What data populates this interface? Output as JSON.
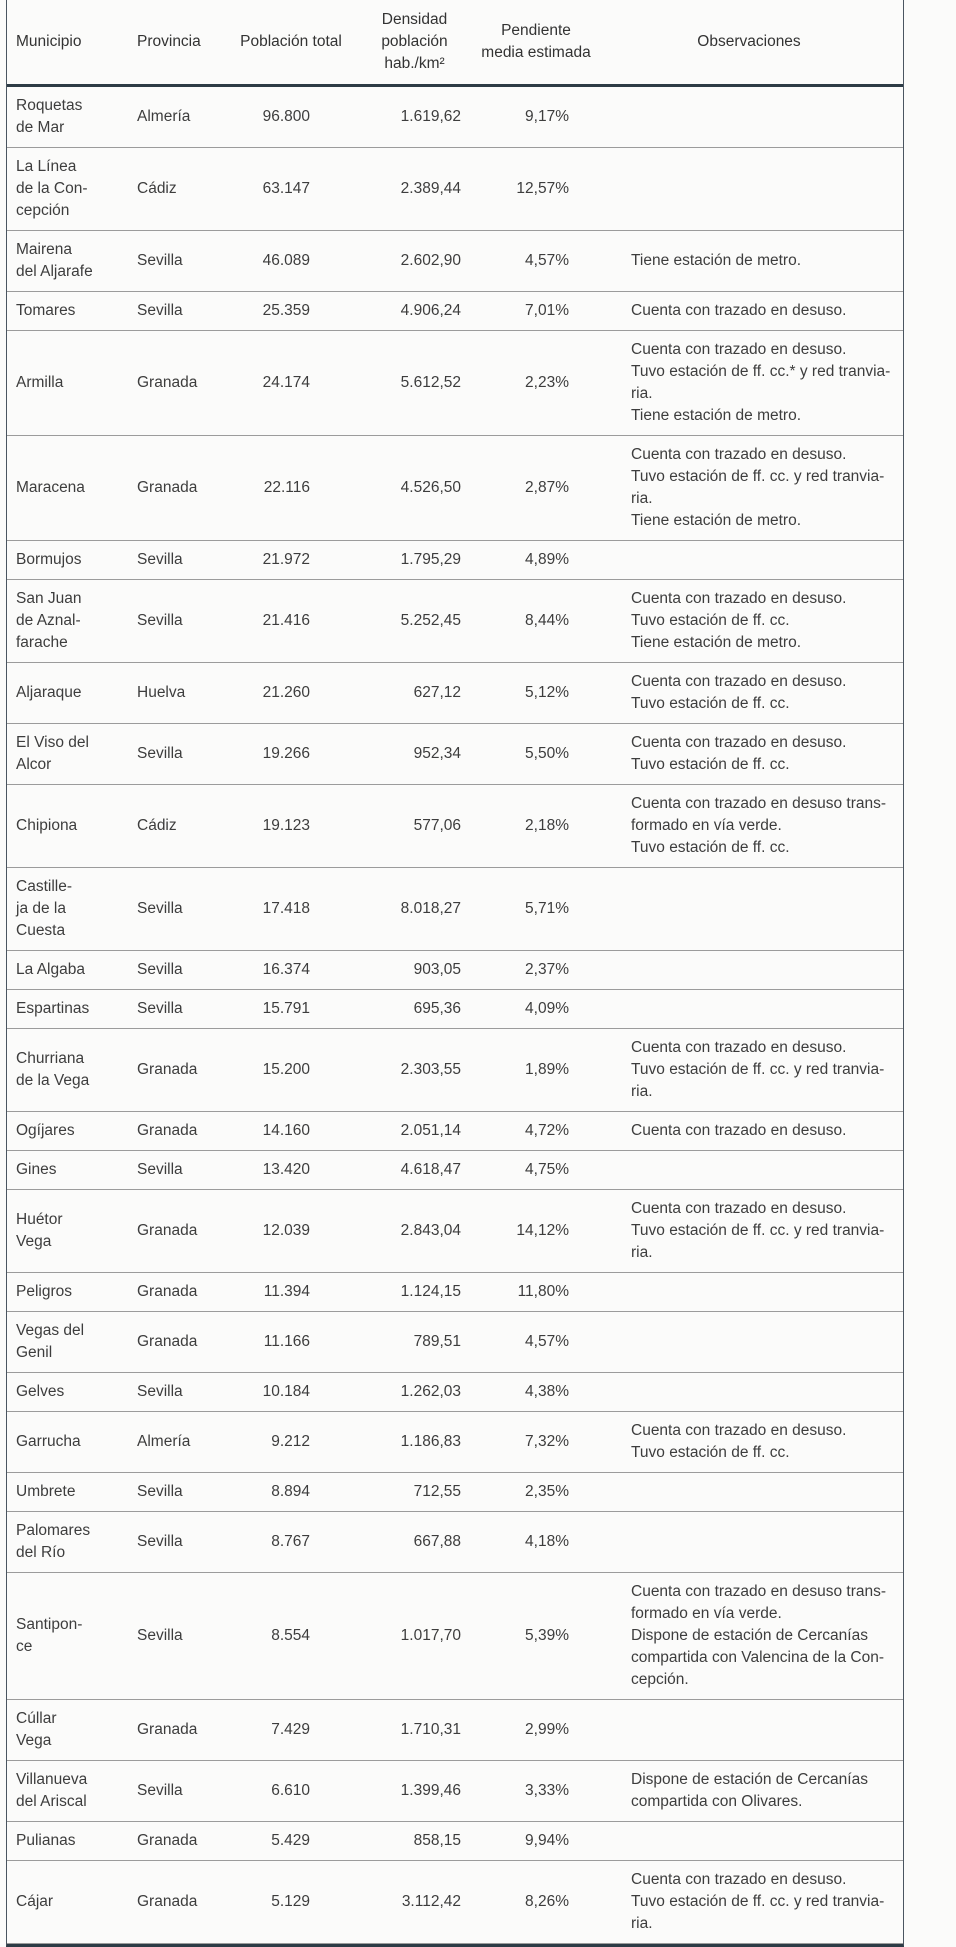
{
  "table": {
    "columns": [
      {
        "key": "municipio",
        "label": "Municipio"
      },
      {
        "key": "provincia",
        "label": "Provincia"
      },
      {
        "key": "poblacion",
        "label": "Población total"
      },
      {
        "key": "densidad",
        "label": "Densidad población hab./km²"
      },
      {
        "key": "pendiente",
        "label": "Pendiente media estimada"
      },
      {
        "key": "observaciones",
        "label": "Observaciones"
      }
    ],
    "rows": [
      {
        "municipio": "Roquetas\nde Mar",
        "provincia": "Almería",
        "poblacion": "96.800",
        "densidad": "1.619,62",
        "pendiente": "9,17%",
        "observaciones": ""
      },
      {
        "municipio": "La Línea\nde la Con-\ncepción",
        "provincia": "Cádiz",
        "poblacion": "63.147",
        "densidad": "2.389,44",
        "pendiente": "12,57%",
        "observaciones": ""
      },
      {
        "municipio": "Mairena\ndel Aljarafe",
        "provincia": "Sevilla",
        "poblacion": "46.089",
        "densidad": "2.602,90",
        "pendiente": "4,57%",
        "observaciones": "Tiene estación de metro."
      },
      {
        "municipio": "Tomares",
        "provincia": "Sevilla",
        "poblacion": "25.359",
        "densidad": "4.906,24",
        "pendiente": "7,01%",
        "observaciones": "Cuenta con trazado en desuso."
      },
      {
        "municipio": "Armilla",
        "provincia": "Granada",
        "poblacion": "24.174",
        "densidad": "5.612,52",
        "pendiente": "2,23%",
        "observaciones": "Cuenta con trazado en desuso.\nTuvo estación de ff. cc.* y red tranvia-\nria.\nTiene estación de metro."
      },
      {
        "municipio": "Maracena",
        "provincia": "Granada",
        "poblacion": "22.116",
        "densidad": "4.526,50",
        "pendiente": "2,87%",
        "observaciones": "Cuenta con trazado en desuso.\nTuvo estación de ff. cc. y red tranvia-\nria.\nTiene estación de metro."
      },
      {
        "municipio": "Bormujos",
        "provincia": "Sevilla",
        "poblacion": "21.972",
        "densidad": "1.795,29",
        "pendiente": "4,89%",
        "observaciones": ""
      },
      {
        "municipio": "San Juan\nde Aznal-\nfarache",
        "provincia": "Sevilla",
        "poblacion": "21.416",
        "densidad": "5.252,45",
        "pendiente": "8,44%",
        "observaciones": "Cuenta con trazado en desuso.\nTuvo estación de ff. cc.\nTiene estación de metro."
      },
      {
        "municipio": "Aljaraque",
        "provincia": "Huelva",
        "poblacion": "21.260",
        "densidad": "627,12",
        "pendiente": "5,12%",
        "observaciones": "Cuenta con trazado en desuso.\nTuvo estación de ff. cc."
      },
      {
        "municipio": "El Viso del\nAlcor",
        "provincia": "Sevilla",
        "poblacion": "19.266",
        "densidad": "952,34",
        "pendiente": "5,50%",
        "observaciones": "Cuenta con trazado en desuso.\nTuvo estación de ff. cc."
      },
      {
        "municipio": "Chipiona",
        "provincia": "Cádiz",
        "poblacion": "19.123",
        "densidad": "577,06",
        "pendiente": "2,18%",
        "observaciones": "Cuenta con trazado en desuso trans-\nformado en vía verde.\nTuvo estación de ff. cc."
      },
      {
        "municipio": "Castille-\nja de la\nCuesta",
        "provincia": "Sevilla",
        "poblacion": "17.418",
        "densidad": "8.018,27",
        "pendiente": "5,71%",
        "observaciones": ""
      },
      {
        "municipio": "La Algaba",
        "provincia": "Sevilla",
        "poblacion": "16.374",
        "densidad": "903,05",
        "pendiente": "2,37%",
        "observaciones": ""
      },
      {
        "municipio": "Espartinas",
        "provincia": "Sevilla",
        "poblacion": "15.791",
        "densidad": "695,36",
        "pendiente": "4,09%",
        "observaciones": ""
      },
      {
        "municipio": "Churriana\nde la Vega",
        "provincia": "Granada",
        "poblacion": "15.200",
        "densidad": "2.303,55",
        "pendiente": "1,89%",
        "observaciones": "Cuenta con trazado en desuso.\nTuvo estación de ff. cc. y red tranvia-\nria."
      },
      {
        "municipio": "Ogíjares",
        "provincia": "Granada",
        "poblacion": "14.160",
        "densidad": "2.051,14",
        "pendiente": "4,72%",
        "observaciones": "Cuenta con trazado en desuso."
      },
      {
        "municipio": "Gines",
        "provincia": "Sevilla",
        "poblacion": "13.420",
        "densidad": "4.618,47",
        "pendiente": "4,75%",
        "observaciones": ""
      },
      {
        "municipio": "Huétor\nVega",
        "provincia": "Granada",
        "poblacion": "12.039",
        "densidad": "2.843,04",
        "pendiente": "14,12%",
        "observaciones": "Cuenta con trazado en desuso.\nTuvo estación de ff. cc. y red tranvia-\nria."
      },
      {
        "municipio": "Peligros",
        "provincia": "Granada",
        "poblacion": "11.394",
        "densidad": "1.124,15",
        "pendiente": "11,80%",
        "observaciones": ""
      },
      {
        "municipio": "Vegas del\nGenil",
        "provincia": "Granada",
        "poblacion": "11.166",
        "densidad": "789,51",
        "pendiente": "4,57%",
        "observaciones": ""
      },
      {
        "municipio": "Gelves",
        "provincia": "Sevilla",
        "poblacion": "10.184",
        "densidad": "1.262,03",
        "pendiente": "4,38%",
        "observaciones": ""
      },
      {
        "municipio": "Garrucha",
        "provincia": "Almería",
        "poblacion": "9.212",
        "densidad": "1.186,83",
        "pendiente": "7,32%",
        "observaciones": "Cuenta con trazado en desuso.\nTuvo estación de ff. cc."
      },
      {
        "municipio": "Umbrete",
        "provincia": "Sevilla",
        "poblacion": "8.894",
        "densidad": "712,55",
        "pendiente": "2,35%",
        "observaciones": ""
      },
      {
        "municipio": "Palomares\ndel Río",
        "provincia": "Sevilla",
        "poblacion": "8.767",
        "densidad": "667,88",
        "pendiente": "4,18%",
        "observaciones": ""
      },
      {
        "municipio": "Santipon-\nce",
        "provincia": "Sevilla",
        "poblacion": "8.554",
        "densidad": "1.017,70",
        "pendiente": "5,39%",
        "observaciones": "Cuenta con trazado en desuso trans-\nformado en vía verde.\nDispone de estación de Cercanías\ncompartida con Valencina de la Con-\ncepción."
      },
      {
        "municipio": "Cúllar\nVega",
        "provincia": "Granada",
        "poblacion": "7.429",
        "densidad": "1.710,31",
        "pendiente": "2,99%",
        "observaciones": ""
      },
      {
        "municipio": "Villanueva\ndel Ariscal",
        "provincia": "Sevilla",
        "poblacion": "6.610",
        "densidad": "1.399,46",
        "pendiente": "3,33%",
        "observaciones": "Dispone de estación de Cercanías\ncompartida con Olivares."
      },
      {
        "municipio": "Pulianas",
        "provincia": "Granada",
        "poblacion": "5.429",
        "densidad": "858,15",
        "pendiente": "9,94%",
        "observaciones": ""
      },
      {
        "municipio": "Cájar",
        "provincia": "Granada",
        "poblacion": "5.129",
        "densidad": "3.112,42",
        "pendiente": "8,26%",
        "observaciones": "Cuenta con trazado en desuso.\nTuvo estación de ff. cc. y red tranvia-\nria."
      }
    ]
  }
}
